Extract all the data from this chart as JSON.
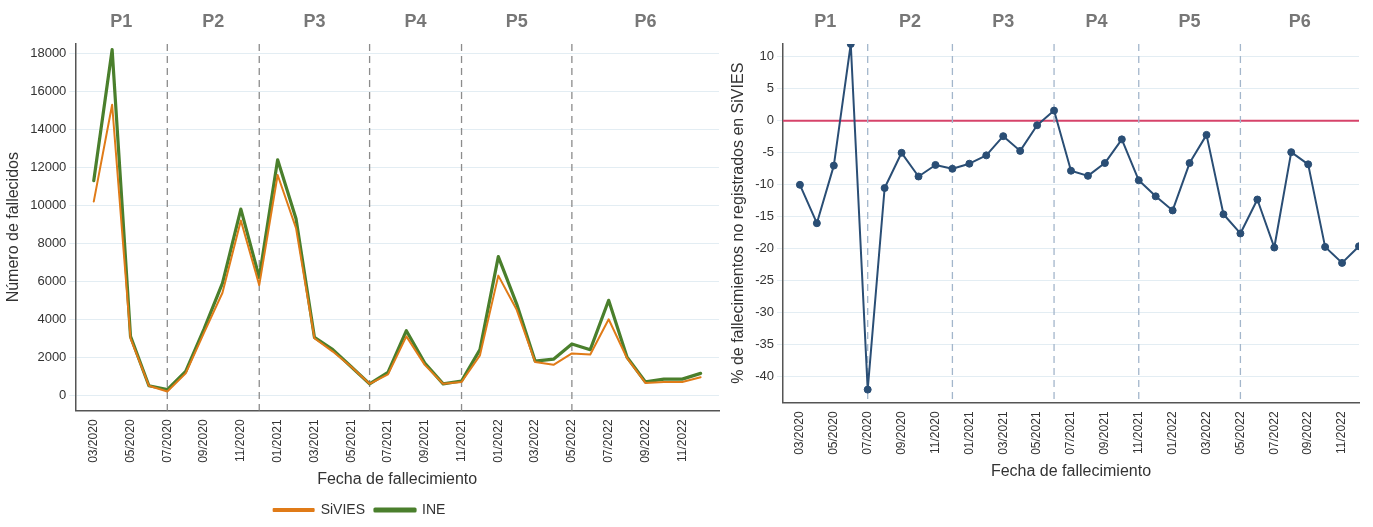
{
  "chart_data": [
    {
      "type": "line",
      "xlabel": "Fecha de fallecimiento",
      "ylabel": "Número de fallecidos",
      "x": [
        "2020-03",
        "2020-04",
        "2020-05",
        "2020-06",
        "2020-07",
        "2020-08",
        "2020-09",
        "2020-10",
        "2020-11",
        "2020-12",
        "2021-01",
        "2021-02",
        "2021-03",
        "2021-04",
        "2021-05",
        "2021-06",
        "2021-07",
        "2021-08",
        "2021-09",
        "2021-10",
        "2021-11",
        "2021-12",
        "2022-01",
        "2022-02",
        "2022-03",
        "2022-04",
        "2022-05",
        "2022-06",
        "2022-07",
        "2022-08",
        "2022-09",
        "2022-10",
        "2022-11",
        "2022-12"
      ],
      "series": [
        {
          "name": "SiVIES",
          "color": "#e07b18",
          "values": [
            10200,
            15300,
            3000,
            500,
            200,
            1150,
            3300,
            5400,
            9200,
            5800,
            11600,
            8800,
            3000,
            2300,
            1500,
            600,
            1100,
            3100,
            1600,
            600,
            700,
            2100,
            6300,
            4500,
            1750,
            1600,
            2200,
            2150,
            4000,
            1950,
            650,
            700,
            700,
            950
          ]
        },
        {
          "name": "INE",
          "color": "#4a7f2c",
          "values": [
            11300,
            18200,
            3100,
            500,
            300,
            1250,
            3500,
            5900,
            9800,
            6200,
            12400,
            9300,
            3050,
            2400,
            1500,
            600,
            1200,
            3400,
            1700,
            600,
            750,
            2400,
            7300,
            4800,
            1800,
            1900,
            2700,
            2400,
            5000,
            2000,
            700,
            850,
            850,
            1150
          ]
        }
      ],
      "xlim": [
        "2020-02",
        "2023-01"
      ],
      "xticks": [
        {
          "value": "2020-03",
          "label": "03/2020"
        },
        {
          "value": "2020-05",
          "label": "05/2020"
        },
        {
          "value": "2020-07",
          "label": "07/2020"
        },
        {
          "value": "2020-09",
          "label": "09/2020"
        },
        {
          "value": "2020-11",
          "label": "11/2020"
        },
        {
          "value": "2021-01",
          "label": "01/2021"
        },
        {
          "value": "2021-03",
          "label": "03/2021"
        },
        {
          "value": "2021-05",
          "label": "05/2021"
        },
        {
          "value": "2021-07",
          "label": "07/2021"
        },
        {
          "value": "2021-09",
          "label": "09/2021"
        },
        {
          "value": "2021-11",
          "label": "11/2021"
        },
        {
          "value": "2022-01",
          "label": "01/2022"
        },
        {
          "value": "2022-03",
          "label": "03/2022"
        },
        {
          "value": "2022-05",
          "label": "05/2022"
        },
        {
          "value": "2022-07",
          "label": "07/2022"
        },
        {
          "value": "2022-09",
          "label": "09/2022"
        },
        {
          "value": "2022-11",
          "label": "11/2022"
        }
      ],
      "ylim": [
        -800,
        18500
      ],
      "yticks": [
        0,
        2000,
        4000,
        6000,
        8000,
        10000,
        12000,
        14000,
        16000,
        18000
      ],
      "grid": "y",
      "legend": "bottom",
      "marker": "none",
      "line_style": "solid",
      "ref_lines": [
        {
          "axis": "x",
          "value": "2020-07",
          "color": "#8c8c8c",
          "line_style": "dashed"
        },
        {
          "axis": "x",
          "value": "2020-12",
          "color": "#8c8c8c",
          "line_style": "dashed"
        },
        {
          "axis": "x",
          "value": "2021-06",
          "color": "#8c8c8c",
          "line_style": "dashed"
        },
        {
          "axis": "x",
          "value": "2021-11",
          "color": "#8c8c8c",
          "line_style": "dashed"
        },
        {
          "axis": "x",
          "value": "2022-05",
          "color": "#8c8c8c",
          "line_style": "dashed"
        }
      ],
      "annotations": [
        "P1",
        "P2",
        "P3",
        "P4",
        "P5",
        "P6"
      ]
    },
    {
      "type": "line",
      "xlabel": "Fecha de fallecimiento",
      "ylabel": "% de fallecimientos no registrados en SiVIES",
      "x": [
        "2020-03",
        "2020-04",
        "2020-05",
        "2020-06",
        "2020-07",
        "2020-08",
        "2020-09",
        "2020-10",
        "2020-11",
        "2020-12",
        "2021-01",
        "2021-02",
        "2021-03",
        "2021-04",
        "2021-05",
        "2021-06",
        "2021-07",
        "2021-08",
        "2021-09",
        "2021-10",
        "2021-11",
        "2021-12",
        "2022-01",
        "2022-02",
        "2022-03",
        "2022-04",
        "2022-05",
        "2022-06",
        "2022-07",
        "2022-08",
        "2022-09",
        "2022-10",
        "2022-11",
        "2022-12"
      ],
      "series": [
        {
          "color": "#2a4e75",
          "values": [
            -10,
            -16,
            -7,
            12,
            -42,
            -10.5,
            -5,
            -8.7,
            -6.9,
            -7.5,
            -6.7,
            -5.4,
            -2.4,
            -4.7,
            -0.7,
            1.6,
            -7.8,
            -8.6,
            -6.6,
            -2.9,
            -9.3,
            -11.8,
            -14,
            -6.6,
            -2.2,
            -14.6,
            -17.6,
            -12.3,
            -19.8,
            -4.9,
            -6.8,
            -19.7,
            -22.2,
            -19.6
          ]
        }
      ],
      "xlim": [
        "2020-02",
        "2022-12"
      ],
      "xticks": [
        {
          "value": "2020-03",
          "label": "03/2020"
        },
        {
          "value": "2020-05",
          "label": "05/2020"
        },
        {
          "value": "2020-07",
          "label": "07/2020"
        },
        {
          "value": "2020-09",
          "label": "09/2020"
        },
        {
          "value": "2020-11",
          "label": "11/2020"
        },
        {
          "value": "2021-01",
          "label": "01/2021"
        },
        {
          "value": "2021-03",
          "label": "03/2021"
        },
        {
          "value": "2021-05",
          "label": "05/2021"
        },
        {
          "value": "2021-07",
          "label": "07/2021"
        },
        {
          "value": "2021-09",
          "label": "09/2021"
        },
        {
          "value": "2021-11",
          "label": "11/2021"
        },
        {
          "value": "2022-01",
          "label": "01/2022"
        },
        {
          "value": "2022-03",
          "label": "03/2022"
        },
        {
          "value": "2022-05",
          "label": "05/2022"
        },
        {
          "value": "2022-07",
          "label": "07/2022"
        },
        {
          "value": "2022-09",
          "label": "09/2022"
        },
        {
          "value": "2022-11",
          "label": "11/2022"
        }
      ],
      "ylim": [
        -44,
        12
      ],
      "yticks": [
        -40,
        -35,
        -30,
        -25,
        -20,
        -15,
        -10,
        -5,
        0,
        5,
        10
      ],
      "grid": "y",
      "marker": "circle",
      "line_style": "solid",
      "ref_lines": [
        {
          "axis": "y",
          "value": 0,
          "color": "#d6436a",
          "line_style": "solid"
        },
        {
          "axis": "x",
          "value": "2020-07",
          "color": "#a3b6cb",
          "line_style": "dashed"
        },
        {
          "axis": "x",
          "value": "2020-12",
          "color": "#a3b6cb",
          "line_style": "dashed"
        },
        {
          "axis": "x",
          "value": "2021-06",
          "color": "#a3b6cb",
          "line_style": "dashed"
        },
        {
          "axis": "x",
          "value": "2021-11",
          "color": "#a3b6cb",
          "line_style": "dashed"
        },
        {
          "axis": "x",
          "value": "2022-05",
          "color": "#a3b6cb",
          "line_style": "dashed"
        }
      ],
      "annotations": [
        "P1",
        "P2",
        "P3",
        "P4",
        "P5",
        "P6"
      ]
    }
  ]
}
